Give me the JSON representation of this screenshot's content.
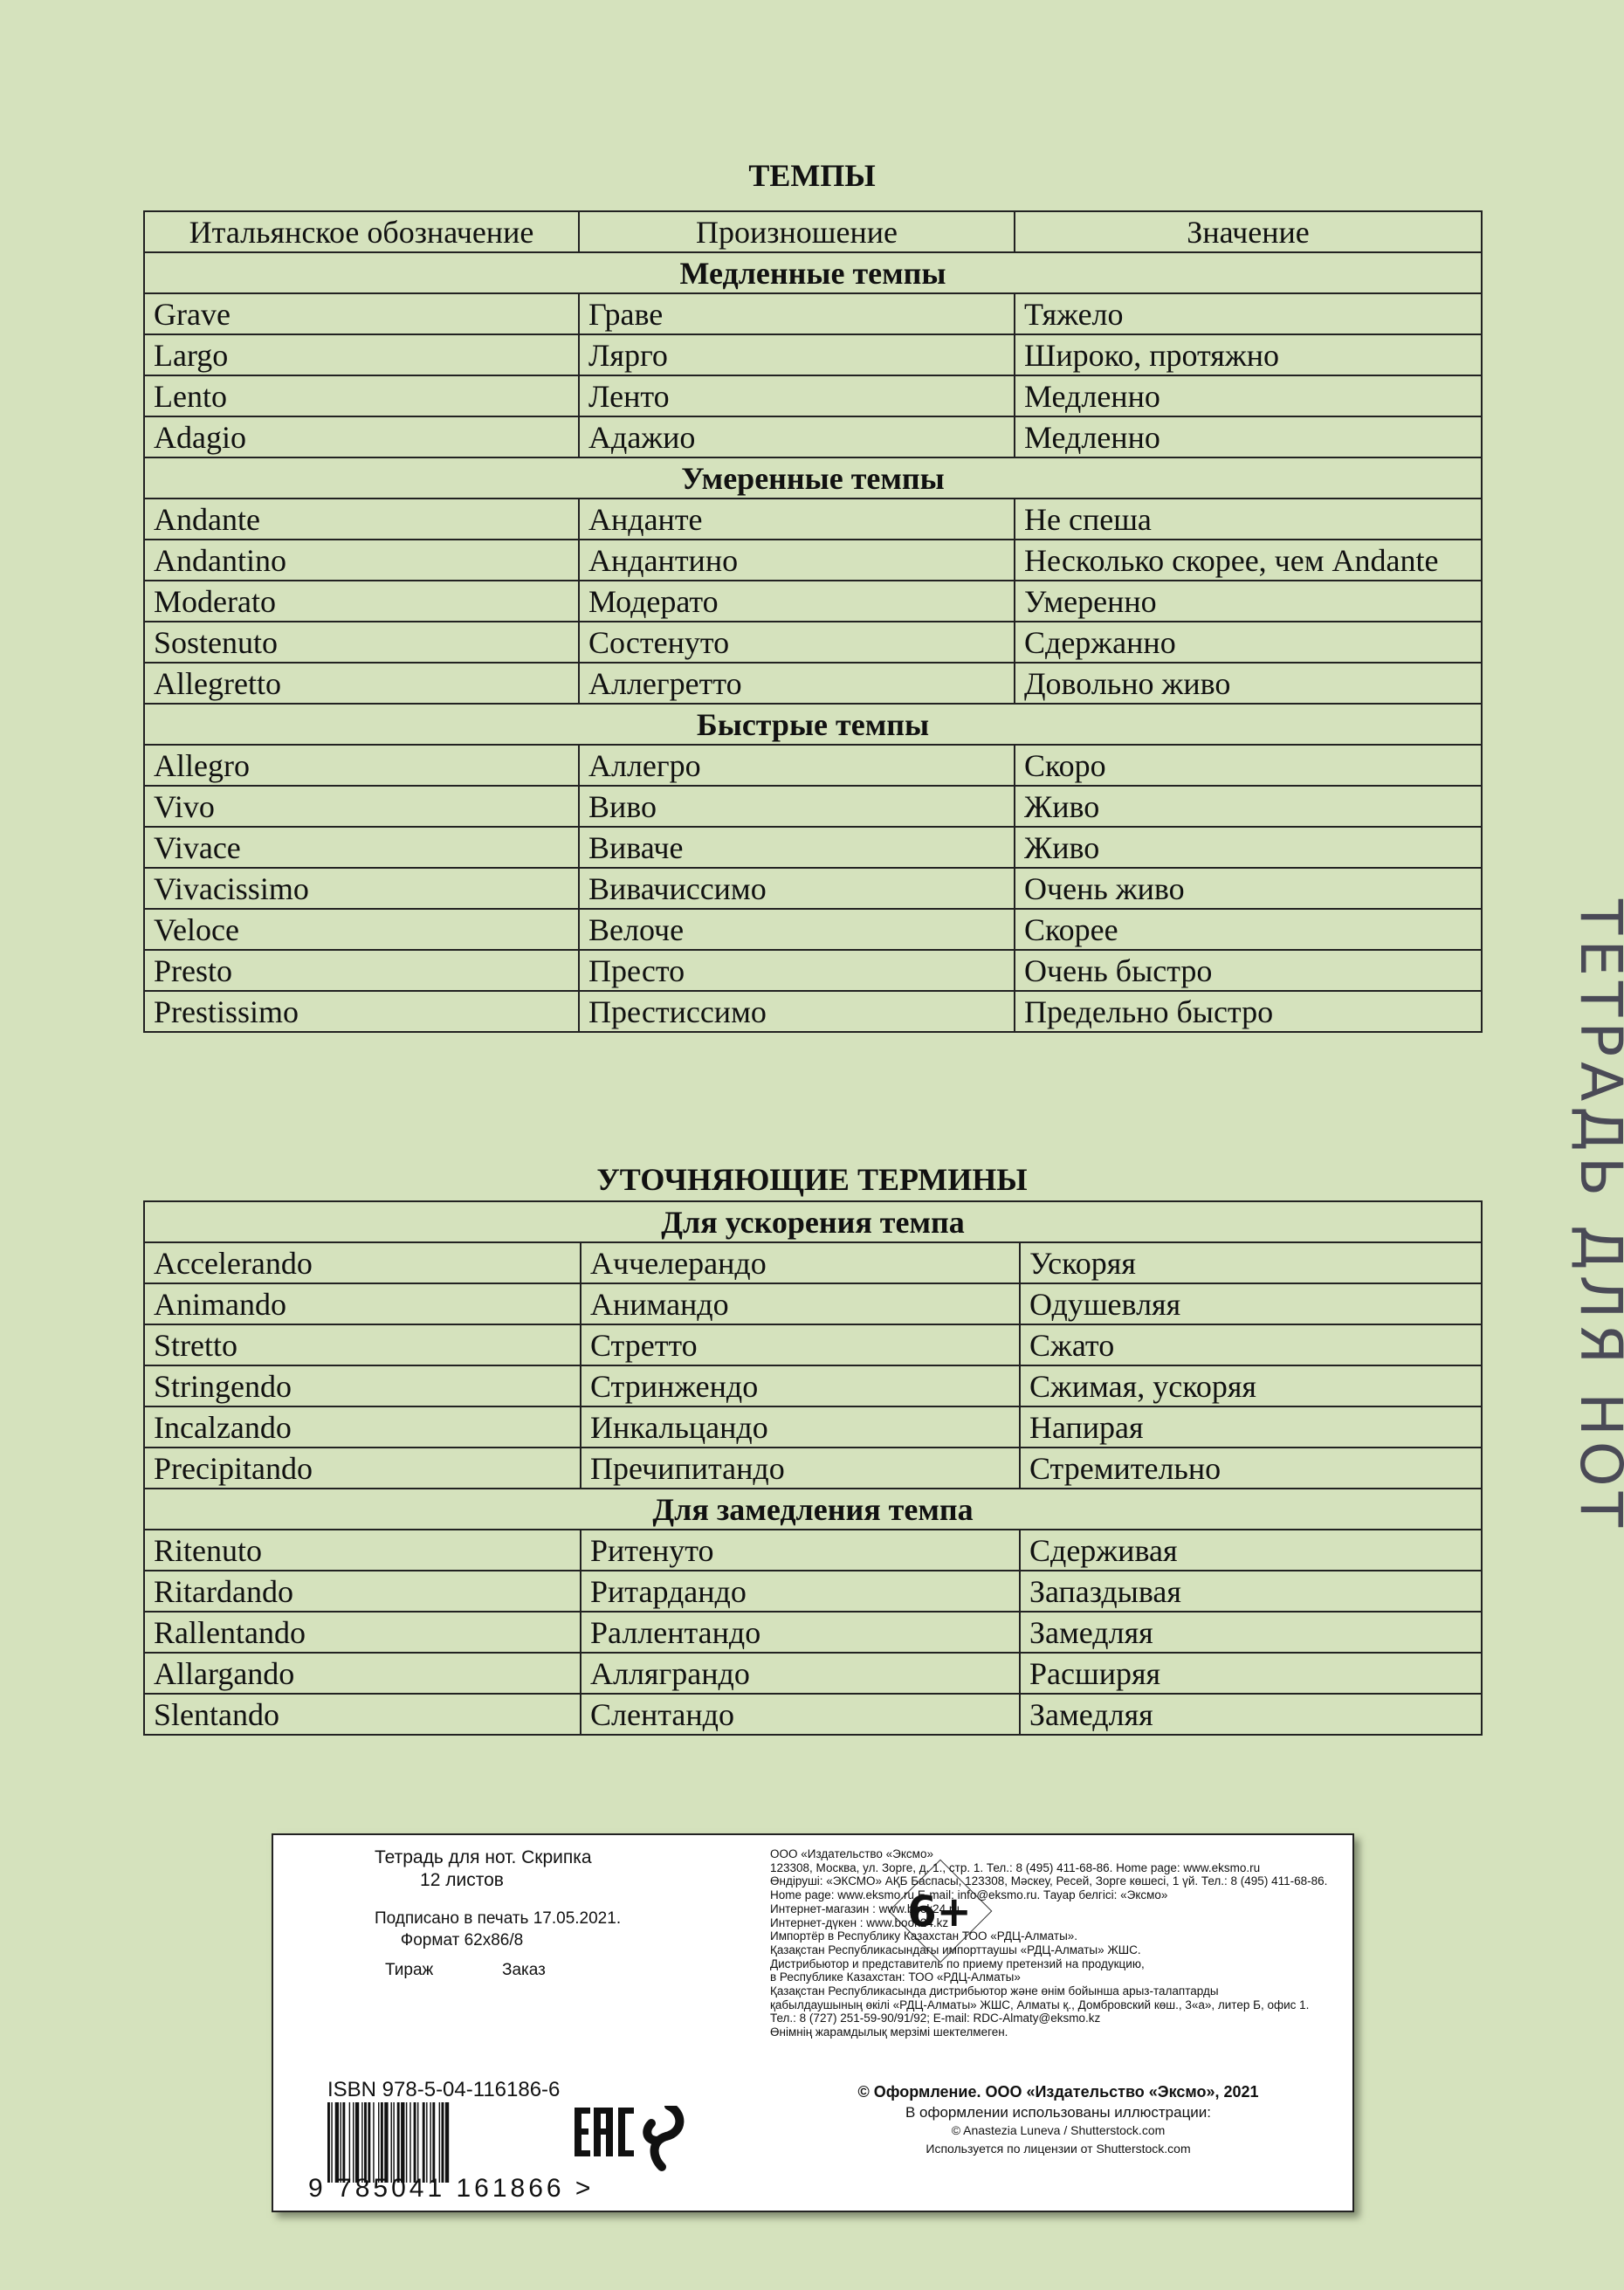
{
  "table1": {
    "title": "ТЕМПЫ",
    "headers": [
      "Итальянское обозначение",
      "Произношение",
      "Значение"
    ],
    "sections": [
      {
        "title": "Медленные темпы",
        "rows": [
          [
            "Grave",
            "Граве",
            "Тяжело"
          ],
          [
            "Largo",
            "Лярго",
            "Широко, протяжно"
          ],
          [
            "Lento",
            "Ленто",
            "Медленно"
          ],
          [
            "Adagio",
            "Адажио",
            "Медленно"
          ]
        ]
      },
      {
        "title": "Умеренные темпы",
        "rows": [
          [
            "Andante",
            "Анданте",
            "Не спеша"
          ],
          [
            "Andantino",
            "Андантино",
            "Несколько скорее, чем Andante"
          ],
          [
            "Moderato",
            "Модерато",
            "Умеренно"
          ],
          [
            "Sostenuto",
            "Состенуто",
            "Сдержанно"
          ],
          [
            "Allegretto",
            "Аллегретто",
            "Довольно живо"
          ]
        ]
      },
      {
        "title": "Быстрые темпы",
        "rows": [
          [
            "Allegro",
            "Аллегро",
            "Скоро"
          ],
          [
            "Vivo",
            "Виво",
            "Живо"
          ],
          [
            "Vivace",
            "Виваче",
            "Живо"
          ],
          [
            "Vivacissimo",
            "Вивачиссимо",
            "Очень живо"
          ],
          [
            "Veloce",
            "Велоче",
            "Скорее"
          ],
          [
            "Presto",
            "Престо",
            "Очень быстро"
          ],
          [
            "Prestissimo",
            "Престиссимо",
            "Предельно быстро"
          ]
        ]
      }
    ]
  },
  "table2": {
    "title": "УТОЧНЯЮЩИЕ ТЕРМИНЫ",
    "sections": [
      {
        "title": "Для ускорения темпа",
        "rows": [
          [
            "Accelerando",
            "Аччелерандо",
            "Ускоряя"
          ],
          [
            "Animando",
            "Анимандо",
            "Одушевляя"
          ],
          [
            "Stretto",
            "Стретто",
            "Сжато"
          ],
          [
            "Stringendo",
            "Стринжендо",
            "Сжимая, ускоряя"
          ],
          [
            "Incalzando",
            "Инкальцандо",
            "Напирая"
          ],
          [
            "Precipitando",
            "Пречипитандо",
            "Стремительно"
          ]
        ]
      },
      {
        "title": "Для замедления темпа",
        "rows": [
          [
            "Ritenuto",
            "Ритенуто",
            "Сдерживая"
          ],
          [
            "Ritardando",
            "Ритардандо",
            "Запаздывая"
          ],
          [
            "Rallentando",
            "Раллентандо",
            "Замедляя"
          ],
          [
            "Allargando",
            "Алляграндо",
            "Расширяя"
          ],
          [
            "Slentando",
            "Слентандо",
            "Замедляя"
          ]
        ]
      }
    ]
  },
  "spine_title": "ТЕТРАДЬ ДЛЯ НОТ",
  "imprint": {
    "product": "Тетрадь для нот. Скрипка",
    "sheets": "12 листов",
    "signed": "Подписано в печать 17.05.2021.",
    "format": "Формат 62x86/8",
    "run_label": "Тираж",
    "order_label": "Заказ",
    "age_rating": "6+",
    "isbn": "ISBN 978-5-04-116186-6",
    "barcode_digits": "9 785041 161866 >",
    "eac_logo": "ЕАС",
    "publisher_lines": [
      "ООО «Издательство «Эксмо»",
      "123308, Москва, ул. Зорге, д. 1., стр. 1.  Тел.: 8 (495) 411-68-86. Home page: www.eksmo.ru",
      "Өндіруші: «ЭКСМО» АҚБ Баспасы, 123308, Мәскеу, Ресей, Зорге көшесі, 1 үй. Тел.: 8 (495) 411-68-86.",
      "Home page: www.eksmo.ru    E-mail: info@eksmo.ru.    Тауар белгісі: «Эксмо»",
      "Интернет-магазин : www.book24.ru",
      "Интернет-дүкен : www.book24.kz",
      "Импортёр в Республику Казахстан ТОО «РДЦ-Алматы».",
      "Қазақстан Республикасындағы импорттаушы «РДЦ-Алматы» ЖШС.",
      "Дистрибьютор и представитель по приему претензий на продукцию,",
      "в Республике Казахстан: ТОО «РДЦ-Алматы»",
      "Қазақстан Республикасында дистрибьютор және өнім бойынша арыз-талаптарды",
      "қабылдаушының өкілі «РДЦ-Алматы» ЖШС, Алматы қ.,  Домбровский көш.,  3«а», литер Б, офис 1.",
      "Тел.: 8 (727) 251-59-90/91/92;  E-mail: RDC-Almaty@eksmo.kz",
      "Өнімнің жарамдылық мерзімі шектелмеген."
    ],
    "copyright": "© Оформление. ООО «Издательство «Эксмо», 2021",
    "illustrations": "В оформлении использованы иллюстрации:",
    "credit": "© Anastezia Luneva / Shutterstock.com",
    "license": "Используется по лицензии от Shutterstock.com"
  },
  "colors": {
    "background": "#d5e2bd",
    "spine_text": "#4a4a56"
  }
}
